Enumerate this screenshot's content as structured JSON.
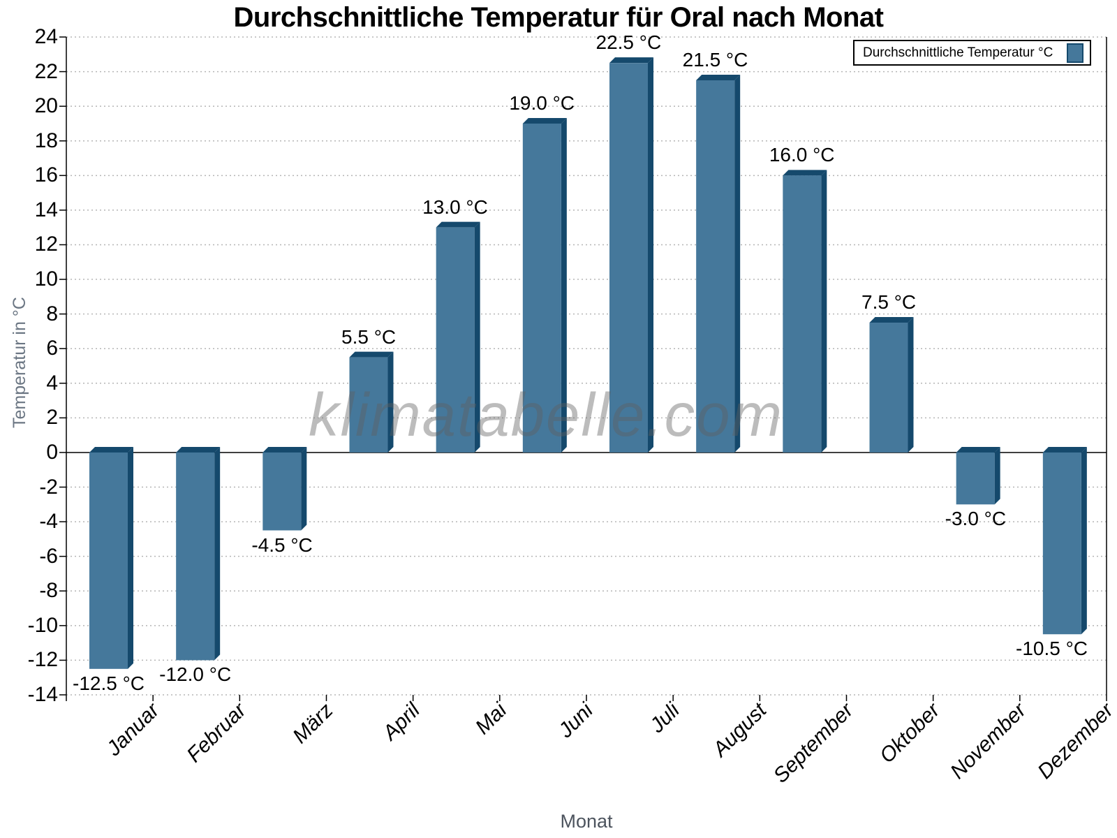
{
  "chart_data": {
    "type": "bar",
    "title": "Durchschnittliche Temperatur für Oral nach Monat",
    "xlabel": "Monat",
    "ylabel": "Temperatur in °C",
    "categories": [
      "Januar",
      "Februar",
      "März",
      "April",
      "Mai",
      "Juni",
      "Juli",
      "August",
      "September",
      "Oktober",
      "November",
      "Dezember"
    ],
    "values": [
      -12.5,
      -12.0,
      -4.5,
      5.5,
      13.0,
      19.0,
      22.5,
      21.5,
      16.0,
      7.5,
      -3.0,
      -10.5
    ],
    "data_labels": [
      "-12.5 °C",
      "-12.0 °C",
      "-4.5 °C",
      "5.5 °C",
      "13.0 °C",
      "19.0 °C",
      "22.5 °C",
      "21.5 °C",
      "16.0 °C",
      "7.5 °C",
      "-3.0 °C",
      "-10.5 °C"
    ],
    "ylim": [
      -14,
      24
    ],
    "yticks": [
      24,
      22,
      20,
      18,
      16,
      14,
      12,
      10,
      8,
      6,
      4,
      2,
      0,
      -2,
      -4,
      -6,
      -8,
      -10,
      -12,
      -14
    ],
    "grid": "horizontal-dotted",
    "legend_position": "top-right",
    "legend_label": "Durchschnittliche Temperatur °C",
    "bar_face_color": "#45789B",
    "bar_side_color": "#15496C"
  },
  "watermark": "klimatabelle.com",
  "colors": {
    "grid_line": "#b5b5b5",
    "zero_line": "#000000",
    "axis_line": "#000000",
    "axis_title_gray": "#6b7683"
  }
}
